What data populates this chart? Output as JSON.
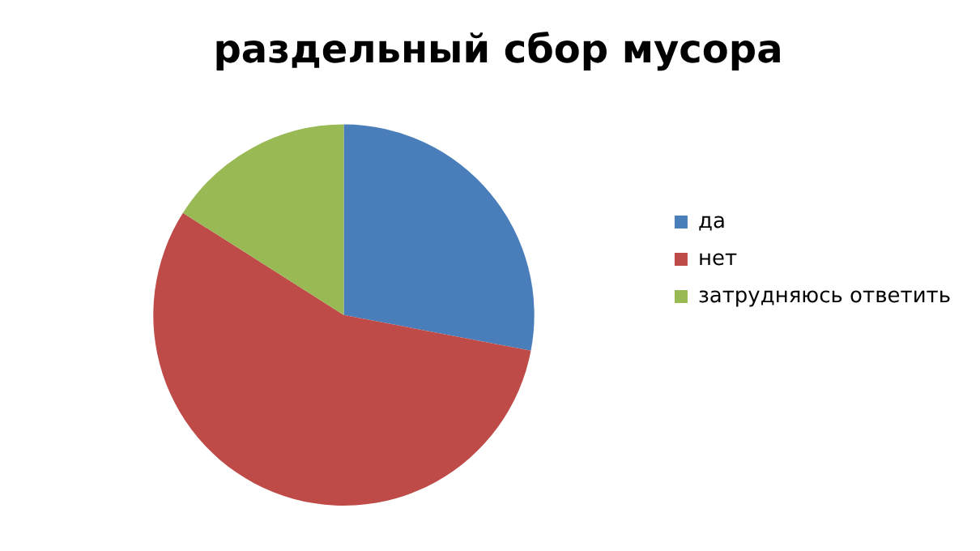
{
  "chart_data": {
    "type": "pie",
    "title": "раздельный сбор мусора",
    "categories": [
      "да",
      "нет",
      "затрудняюсь ответить"
    ],
    "values": [
      28,
      56,
      16
    ],
    "colors": [
      "#4a7ebb",
      "#be4b48",
      "#98b954"
    ],
    "legend": "right"
  }
}
